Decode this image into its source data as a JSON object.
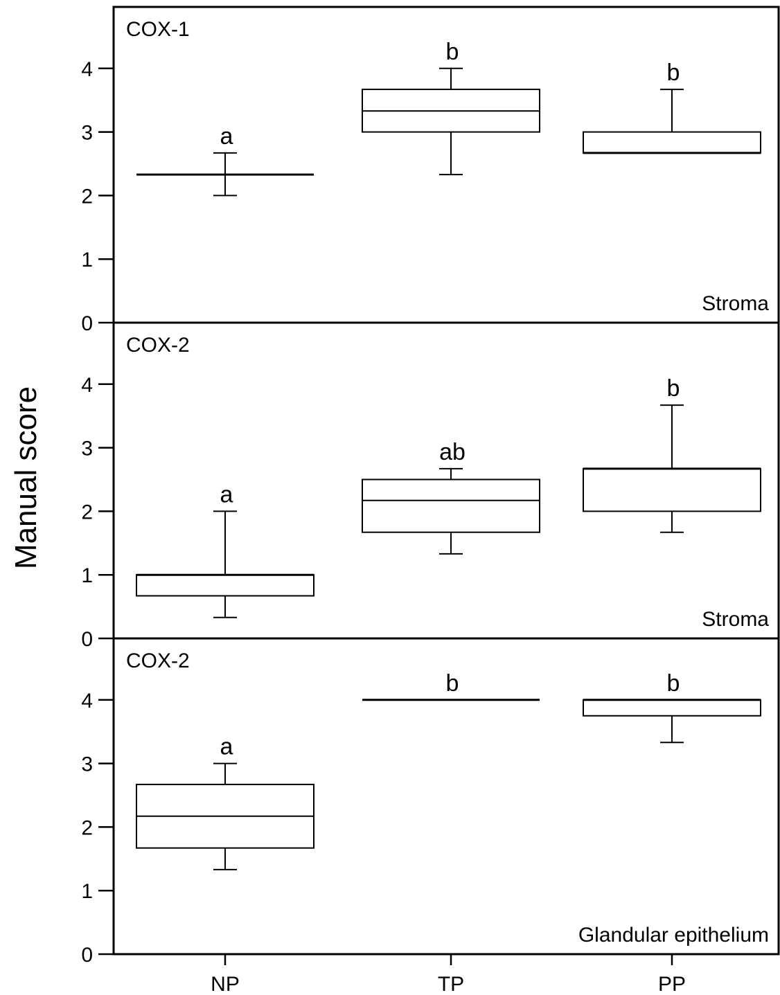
{
  "y_axis_title": "Manual score",
  "categories": [
    "NP",
    "TP",
    "PP"
  ],
  "chart_data": [
    {
      "type": "box",
      "panel_label": "COX-1",
      "tissue_label": "Stroma",
      "ylim": [
        0,
        5
      ],
      "yticks": [
        0,
        1,
        2,
        3,
        4
      ],
      "categories": [
        "NP",
        "TP",
        "PP"
      ],
      "boxes": [
        {
          "category": "NP",
          "whisker_low": 2.0,
          "q1": 2.33,
          "median": 2.33,
          "q3": 2.33,
          "whisker_high": 2.67,
          "letter": "a"
        },
        {
          "category": "TP",
          "whisker_low": 2.33,
          "q1": 3.0,
          "median": 3.33,
          "q3": 3.67,
          "whisker_high": 4.0,
          "letter": "b"
        },
        {
          "category": "PP",
          "whisker_low": 2.67,
          "q1": 2.67,
          "median": 2.67,
          "q3": 3.0,
          "whisker_high": 3.67,
          "letter": "b"
        }
      ]
    },
    {
      "type": "box",
      "panel_label": "COX-2",
      "tissue_label": "Stroma",
      "ylim": [
        0,
        5
      ],
      "yticks": [
        0,
        1,
        2,
        3,
        4
      ],
      "categories": [
        "NP",
        "TP",
        "PP"
      ],
      "boxes": [
        {
          "category": "NP",
          "whisker_low": 0.33,
          "q1": 0.67,
          "median": 1.0,
          "q3": 1.0,
          "whisker_high": 2.0,
          "letter": "a"
        },
        {
          "category": "TP",
          "whisker_low": 1.33,
          "q1": 1.67,
          "median": 2.17,
          "q3": 2.5,
          "whisker_high": 2.67,
          "letter": "ab"
        },
        {
          "category": "PP",
          "whisker_low": 1.67,
          "q1": 2.0,
          "median": 2.67,
          "q3": 2.67,
          "whisker_high": 3.67,
          "letter": "b"
        }
      ]
    },
    {
      "type": "box",
      "panel_label": "COX-2",
      "tissue_label": "Glandular epithelium",
      "ylim": [
        0,
        5
      ],
      "yticks": [
        0,
        1,
        2,
        3,
        4
      ],
      "categories": [
        "NP",
        "TP",
        "PP"
      ],
      "boxes": [
        {
          "category": "NP",
          "whisker_low": 1.33,
          "q1": 1.67,
          "median": 2.17,
          "q3": 2.67,
          "whisker_high": 3.0,
          "letter": "a"
        },
        {
          "category": "TP",
          "whisker_low": 4.0,
          "q1": 4.0,
          "median": 4.0,
          "q3": 4.0,
          "whisker_high": 4.0,
          "letter": "b"
        },
        {
          "category": "PP",
          "whisker_low": 3.33,
          "q1": 3.75,
          "median": 4.0,
          "q3": 4.0,
          "whisker_high": 4.0,
          "letter": "b"
        }
      ]
    }
  ]
}
